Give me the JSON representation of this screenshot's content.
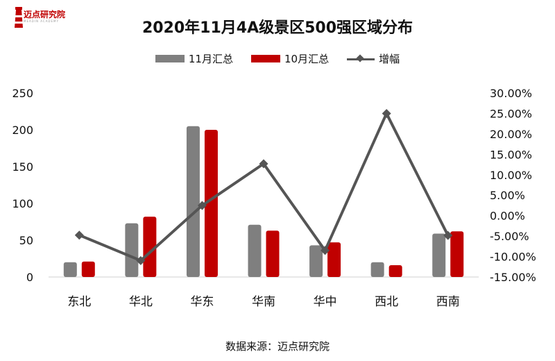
{
  "brand": {
    "logo_text": "迈点研究院",
    "logo_sub": "MEADIN ACADEMY"
  },
  "colors": {
    "nov": "#7f7f7f",
    "oct": "#c00000",
    "growth": "#555555",
    "brand": "#c00000"
  },
  "footer": {
    "source": "数据来源：迈点研究院"
  },
  "chart_data": {
    "type": "bar",
    "title": "2020年11月4A级景区500强区域分布",
    "categories": [
      "东北",
      "华北",
      "华东",
      "华南",
      "华中",
      "西北",
      "西南"
    ],
    "series": [
      {
        "name": "11月汇总",
        "type": "bar",
        "axis": "left",
        "values": [
          20,
          73,
          205,
          71,
          43,
          20,
          59
        ]
      },
      {
        "name": "10月汇总",
        "type": "bar",
        "axis": "left",
        "values": [
          21,
          82,
          200,
          63,
          47,
          16,
          62
        ]
      },
      {
        "name": "增幅",
        "type": "line",
        "axis": "right",
        "values": [
          -4.76,
          -10.98,
          2.5,
          12.7,
          -8.51,
          25.0,
          -4.84
        ]
      }
    ],
    "ylim": [
      0,
      250
    ],
    "yticks": [
      "0",
      "50",
      "100",
      "150",
      "200",
      "250"
    ],
    "y2lim": [
      -15,
      30
    ],
    "y2ticks": [
      "-15.00%",
      "-10.00%",
      "-5.00%",
      "0.00%",
      "5.00%",
      "10.00%",
      "15.00%",
      "20.00%",
      "25.00%",
      "30.00%"
    ],
    "xlabel": "",
    "ylabel": "",
    "y2label": "",
    "legend": "top-center"
  }
}
